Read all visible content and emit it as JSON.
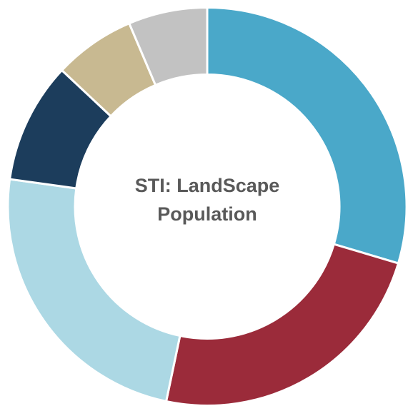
{
  "chart_data": {
    "type": "donut",
    "title": "STI: LandScape Population",
    "values": [
      29.6,
      23.7,
      23.9,
      9.8,
      6.6,
      6.4
    ],
    "colors": [
      "#4aa8c9",
      "#9b2b3a",
      "#acd8e4",
      "#1c3d5c",
      "#c8b991",
      "#c2c2c2"
    ]
  }
}
